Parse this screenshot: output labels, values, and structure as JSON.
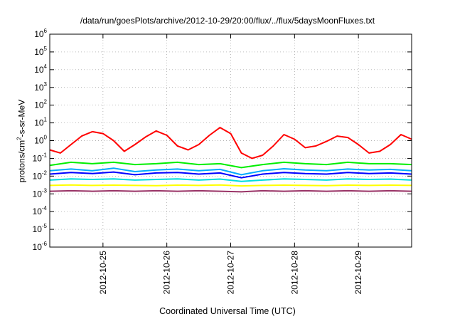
{
  "chart_data": {
    "type": "line",
    "title": "/data/run/goesPlots/archive/2012-10-29/20:00/flux/../flux/5daysMoonFluxes.txt",
    "xlabel": "Coordinated Universal Time (UTC)",
    "ylabel": {
      "prefix": "protons/cm",
      "sup": "2",
      "suffix": "-s-sr-MeV"
    },
    "xscale": "time",
    "yscale": "log",
    "xlim": [
      "2012-10-24 04:00",
      "2012-10-29 20:00"
    ],
    "ylim": [
      1e-06,
      1000000.0
    ],
    "grid": true,
    "x_ticks": [
      "2012-10-25",
      "2012-10-26",
      "2012-10-27",
      "2012-10-28",
      "2012-10-29"
    ],
    "y_ticks": [
      {
        "value": 1e-06,
        "base": "10",
        "exp": "-6"
      },
      {
        "value": 1e-05,
        "base": "10",
        "exp": "-5"
      },
      {
        "value": 0.0001,
        "base": "10",
        "exp": "-4"
      },
      {
        "value": 0.001,
        "base": "10",
        "exp": "-3"
      },
      {
        "value": 0.01,
        "base": "10",
        "exp": "-2"
      },
      {
        "value": 0.1,
        "base": "10",
        "exp": "-1"
      },
      {
        "value": 1.0,
        "base": "10",
        "exp": "0"
      },
      {
        "value": 10.0,
        "base": "10",
        "exp": "1"
      },
      {
        "value": 100.0,
        "base": "10",
        "exp": "2"
      },
      {
        "value": 1000.0,
        "base": "10",
        "exp": "3"
      },
      {
        "value": 10000.0,
        "base": "10",
        "exp": "4"
      },
      {
        "value": 100000.0,
        "base": "10",
        "exp": "5"
      },
      {
        "value": 1000000.0,
        "base": "10",
        "exp": "6"
      }
    ],
    "series": [
      {
        "color": "#ff0000",
        "x": [
          "2012-10-24 04:00",
          "2012-10-24 08:00",
          "2012-10-24 12:00",
          "2012-10-24 16:00",
          "2012-10-24 20:00",
          "2012-10-25 00:00",
          "2012-10-25 04:00",
          "2012-10-25 08:00",
          "2012-10-25 12:00",
          "2012-10-25 16:00",
          "2012-10-25 20:00",
          "2012-10-26 00:00",
          "2012-10-26 04:00",
          "2012-10-26 08:00",
          "2012-10-26 12:00",
          "2012-10-26 16:00",
          "2012-10-26 20:00",
          "2012-10-27 00:00",
          "2012-10-27 04:00",
          "2012-10-27 08:00",
          "2012-10-27 12:00",
          "2012-10-27 16:00",
          "2012-10-27 20:00",
          "2012-10-28 00:00",
          "2012-10-28 04:00",
          "2012-10-28 08:00",
          "2012-10-28 12:00",
          "2012-10-28 16:00",
          "2012-10-28 20:00",
          "2012-10-29 00:00",
          "2012-10-29 04:00",
          "2012-10-29 08:00",
          "2012-10-29 12:00",
          "2012-10-29 16:00",
          "2012-10-29 20:00"
        ],
        "y": [
          0.3,
          0.2,
          0.6,
          1.8,
          3.2,
          2.5,
          1.0,
          0.25,
          0.6,
          1.6,
          3.5,
          2.0,
          0.5,
          0.3,
          0.6,
          2.0,
          5.5,
          2.5,
          0.2,
          0.1,
          0.15,
          0.5,
          2.2,
          1.2,
          0.4,
          0.5,
          0.9,
          1.8,
          1.5,
          0.6,
          0.2,
          0.25,
          0.6,
          2.2,
          1.2
        ]
      },
      {
        "color": "#00ee00",
        "x": [
          "2012-10-24 04:00",
          "2012-10-24 12:00",
          "2012-10-24 20:00",
          "2012-10-25 04:00",
          "2012-10-25 12:00",
          "2012-10-25 20:00",
          "2012-10-26 04:00",
          "2012-10-26 12:00",
          "2012-10-26 20:00",
          "2012-10-27 04:00",
          "2012-10-27 12:00",
          "2012-10-27 20:00",
          "2012-10-28 04:00",
          "2012-10-28 12:00",
          "2012-10-28 20:00",
          "2012-10-29 04:00",
          "2012-10-29 12:00",
          "2012-10-29 20:00"
        ],
        "y": [
          0.04,
          0.06,
          0.05,
          0.06,
          0.045,
          0.05,
          0.06,
          0.045,
          0.05,
          0.03,
          0.045,
          0.06,
          0.05,
          0.045,
          0.06,
          0.05,
          0.05,
          0.045
        ]
      },
      {
        "color": "#00aaff",
        "x": [
          "2012-10-24 04:00",
          "2012-10-24 12:00",
          "2012-10-24 20:00",
          "2012-10-25 04:00",
          "2012-10-25 12:00",
          "2012-10-25 20:00",
          "2012-10-26 04:00",
          "2012-10-26 12:00",
          "2012-10-26 20:00",
          "2012-10-27 04:00",
          "2012-10-27 12:00",
          "2012-10-27 20:00",
          "2012-10-28 04:00",
          "2012-10-28 12:00",
          "2012-10-28 20:00",
          "2012-10-29 04:00",
          "2012-10-29 12:00",
          "2012-10-29 20:00"
        ],
        "y": [
          0.02,
          0.025,
          0.02,
          0.028,
          0.018,
          0.022,
          0.025,
          0.02,
          0.024,
          0.012,
          0.02,
          0.026,
          0.022,
          0.02,
          0.025,
          0.022,
          0.024,
          0.02
        ]
      },
      {
        "color": "#0000ff",
        "x": [
          "2012-10-24 04:00",
          "2012-10-24 12:00",
          "2012-10-24 20:00",
          "2012-10-25 04:00",
          "2012-10-25 12:00",
          "2012-10-25 20:00",
          "2012-10-26 04:00",
          "2012-10-26 12:00",
          "2012-10-26 20:00",
          "2012-10-27 04:00",
          "2012-10-27 12:00",
          "2012-10-27 20:00",
          "2012-10-28 04:00",
          "2012-10-28 12:00",
          "2012-10-28 20:00",
          "2012-10-29 04:00",
          "2012-10-29 12:00",
          "2012-10-29 20:00"
        ],
        "y": [
          0.013,
          0.016,
          0.014,
          0.017,
          0.012,
          0.015,
          0.016,
          0.013,
          0.015,
          0.008,
          0.013,
          0.016,
          0.014,
          0.013,
          0.016,
          0.014,
          0.015,
          0.013
        ]
      },
      {
        "color": "#00dddd",
        "x": [
          "2012-10-24 04:00",
          "2012-10-24 12:00",
          "2012-10-24 20:00",
          "2012-10-25 04:00",
          "2012-10-25 12:00",
          "2012-10-25 20:00",
          "2012-10-26 04:00",
          "2012-10-26 12:00",
          "2012-10-26 20:00",
          "2012-10-27 04:00",
          "2012-10-27 12:00",
          "2012-10-27 20:00",
          "2012-10-28 04:00",
          "2012-10-28 12:00",
          "2012-10-28 20:00",
          "2012-10-29 04:00",
          "2012-10-29 12:00",
          "2012-10-29 20:00"
        ],
        "y": [
          0.006,
          0.007,
          0.0065,
          0.007,
          0.006,
          0.0065,
          0.007,
          0.006,
          0.0068,
          0.005,
          0.006,
          0.007,
          0.0065,
          0.006,
          0.007,
          0.0065,
          0.0068,
          0.006
        ]
      },
      {
        "color": "#ffff00",
        "x": [
          "2012-10-24 04:00",
          "2012-10-24 12:00",
          "2012-10-24 20:00",
          "2012-10-25 04:00",
          "2012-10-25 12:00",
          "2012-10-25 20:00",
          "2012-10-26 04:00",
          "2012-10-26 12:00",
          "2012-10-26 20:00",
          "2012-10-27 04:00",
          "2012-10-27 12:00",
          "2012-10-27 20:00",
          "2012-10-28 04:00",
          "2012-10-28 12:00",
          "2012-10-28 20:00",
          "2012-10-29 04:00",
          "2012-10-29 12:00",
          "2012-10-29 20:00"
        ],
        "y": [
          0.003,
          0.0032,
          0.003,
          0.0031,
          0.003,
          0.0029,
          0.0031,
          0.003,
          0.0032,
          0.0028,
          0.003,
          0.0031,
          0.003,
          0.0029,
          0.0031,
          0.003,
          0.0031,
          0.003
        ]
      },
      {
        "color": "#993366",
        "x": [
          "2012-10-24 04:00",
          "2012-10-24 12:00",
          "2012-10-24 20:00",
          "2012-10-25 04:00",
          "2012-10-25 12:00",
          "2012-10-25 20:00",
          "2012-10-26 04:00",
          "2012-10-26 12:00",
          "2012-10-26 20:00",
          "2012-10-27 04:00",
          "2012-10-27 12:00",
          "2012-10-27 20:00",
          "2012-10-28 04:00",
          "2012-10-28 12:00",
          "2012-10-28 20:00",
          "2012-10-29 04:00",
          "2012-10-29 12:00",
          "2012-10-29 20:00"
        ],
        "y": [
          0.0014,
          0.0015,
          0.0014,
          0.0015,
          0.0014,
          0.0015,
          0.0014,
          0.0015,
          0.0014,
          0.0013,
          0.0015,
          0.0014,
          0.0015,
          0.0014,
          0.0015,
          0.0014,
          0.0015,
          0.0014
        ]
      }
    ]
  }
}
